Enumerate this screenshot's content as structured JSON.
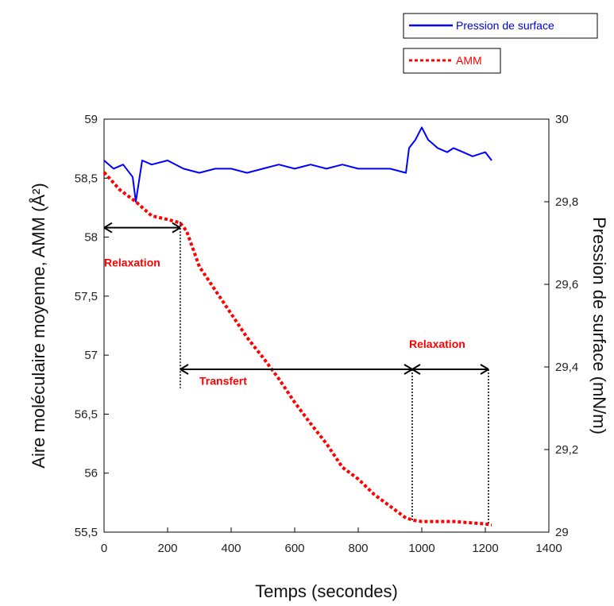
{
  "chart_data": {
    "type": "line",
    "title": "",
    "xlabel": "Temps (secondes)",
    "ylabel_left": "Aire moléculaire moyenne, AMM (Å²)",
    "ylabel_right": "Pression de surface (mN/m)",
    "xlim": [
      0,
      1400
    ],
    "ylim_left": [
      55.5,
      59
    ],
    "ylim_right": [
      29,
      30
    ],
    "grid": false,
    "legend_position": "top-right",
    "x_ticks": [
      "0",
      "200",
      "400",
      "600",
      "800",
      "1000",
      "1200",
      "1400"
    ],
    "x_tick_values": [
      0,
      200,
      400,
      600,
      800,
      1000,
      1200,
      1400
    ],
    "y_left_ticks": [
      "55,5",
      "56",
      "56,5",
      "57",
      "57,5",
      "58",
      "58,5",
      "59"
    ],
    "y_left_tick_values": [
      55.5,
      56,
      56.5,
      57,
      57.5,
      58,
      58.5,
      59
    ],
    "y_right_ticks": [
      "29",
      "29,2",
      "29,4",
      "29,6",
      "29,8",
      "30"
    ],
    "y_right_tick_values": [
      29,
      29.2,
      29.4,
      29.6,
      29.8,
      30
    ],
    "series": [
      {
        "name": "Pression de surface",
        "axis": "right",
        "color": "#0000ff",
        "style": "solid",
        "x": [
          0,
          30,
          60,
          90,
          100,
          120,
          150,
          200,
          250,
          300,
          350,
          400,
          450,
          500,
          550,
          600,
          650,
          700,
          750,
          800,
          850,
          900,
          950,
          960,
          980,
          1000,
          1020,
          1050,
          1080,
          1100,
          1130,
          1160,
          1200,
          1220
        ],
        "y": [
          29.9,
          29.88,
          29.89,
          29.86,
          29.8,
          29.9,
          29.89,
          29.9,
          29.88,
          29.87,
          29.88,
          29.88,
          29.87,
          29.88,
          29.89,
          29.88,
          29.89,
          29.88,
          29.89,
          29.88,
          29.88,
          29.88,
          29.87,
          29.93,
          29.95,
          29.98,
          29.95,
          29.93,
          29.92,
          29.93,
          29.92,
          29.91,
          29.92,
          29.9
        ]
      },
      {
        "name": "AMM",
        "axis": "left",
        "color": "#ff0000",
        "style": "dotted",
        "x": [
          0,
          50,
          100,
          150,
          200,
          240,
          260,
          300,
          350,
          400,
          450,
          500,
          550,
          600,
          650,
          700,
          750,
          800,
          850,
          900,
          950,
          975,
          1000,
          1050,
          1100,
          1150,
          1200,
          1220
        ],
        "y": [
          58.55,
          58.4,
          58.3,
          58.18,
          58.15,
          58.12,
          58.05,
          57.75,
          57.55,
          57.35,
          57.15,
          56.98,
          56.8,
          56.6,
          56.42,
          56.25,
          56.05,
          55.95,
          55.82,
          55.72,
          55.62,
          55.6,
          55.59,
          55.59,
          55.59,
          55.58,
          55.57,
          55.56
        ]
      }
    ],
    "annotations": [
      {
        "text": "Relaxation",
        "x": 0,
        "y": 57.75
      },
      {
        "text": "Transfert",
        "x": 300,
        "y": 56.75
      },
      {
        "text": "Relaxation",
        "x": 960,
        "y": 57.06
      }
    ],
    "phase_arrows": [
      {
        "x_start": 0,
        "x_end": 240,
        "y": 58.08
      },
      {
        "x_start": 240,
        "x_end": 970,
        "y": 56.88
      },
      {
        "x_start": 970,
        "x_end": 1210,
        "y": 56.88
      }
    ],
    "phase_boundaries": [
      {
        "x": 240,
        "y_top": 58.13,
        "y_bottom": 56.72
      },
      {
        "x": 970,
        "y_top": 56.88,
        "y_bottom": 55.59
      },
      {
        "x": 1210,
        "y_top": 56.88,
        "y_bottom": 55.56
      }
    ]
  }
}
